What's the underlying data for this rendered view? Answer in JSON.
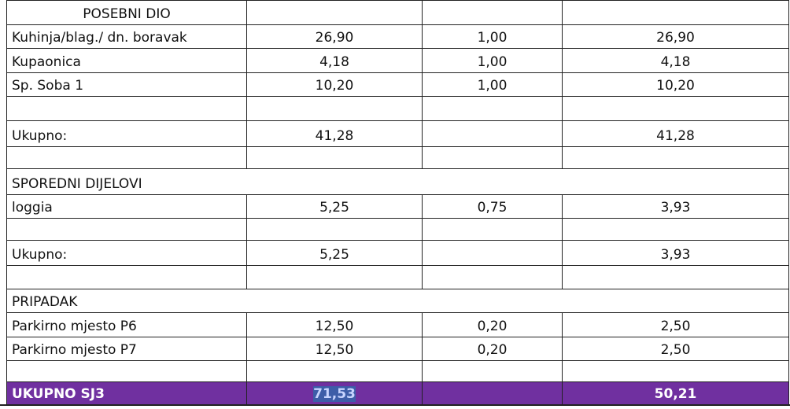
{
  "table": {
    "rows": [
      [
        "POSEBNI  DIO",
        null,
        null,
        null
      ],
      [
        "Kuhinja/blag./ dn. boravak",
        "26,90",
        "1,00",
        "26,90"
      ],
      [
        "Kupaonica",
        "4,18",
        "1,00",
        "4,18"
      ],
      [
        "Sp. Soba 1",
        "10,20",
        "1,00",
        "10,20"
      ],
      [
        null,
        null,
        null,
        null
      ],
      [
        "Ukupno:",
        "41,28",
        null,
        "41,28"
      ],
      [
        null,
        null,
        null,
        null
      ],
      [
        "SPOREDNI  DIJELOVI"
      ],
      [
        "loggia",
        "5,25",
        "0,75",
        "3,93"
      ],
      [
        null,
        null,
        null,
        null
      ],
      [
        "Ukupno:",
        "5,25",
        null,
        "3,93"
      ],
      [
        null,
        null,
        null,
        null
      ],
      [
        "PRIPADAK"
      ],
      [
        "Parkirno mjesto P6",
        "12,50",
        "0,20",
        "2,50"
      ],
      [
        "Parkirno mjesto P7",
        "12,50",
        "0,20",
        "2,50"
      ],
      [
        null,
        null,
        null,
        null
      ],
      [
        "UKUPNO SJ3",
        "71,53",
        null,
        "50,21"
      ]
    ]
  }
}
